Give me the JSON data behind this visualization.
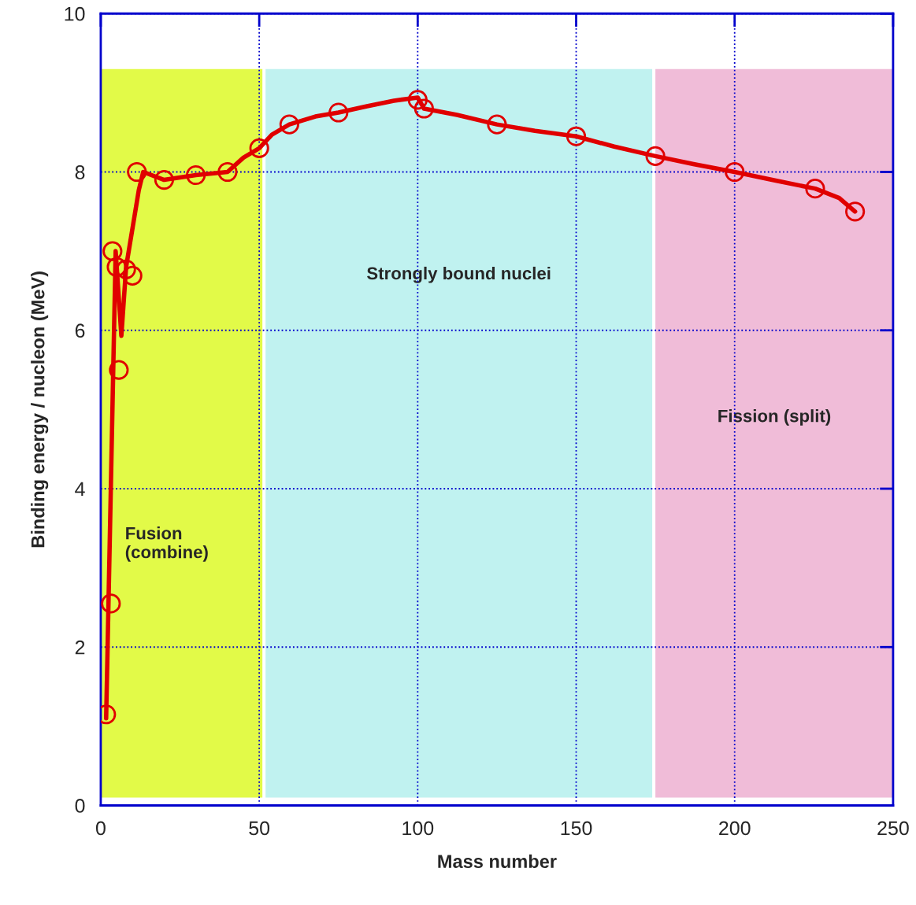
{
  "chart_data": {
    "type": "line",
    "xlabel": "Mass number",
    "ylabel": "Binding energy / nucleon (MeV)",
    "xlim": [
      0,
      250
    ],
    "ylim": [
      0,
      10
    ],
    "xticks": [
      0,
      50,
      100,
      150,
      200,
      250
    ],
    "yticks": [
      0,
      2,
      4,
      6,
      8,
      10
    ],
    "grid": true,
    "series": [
      {
        "type": "line",
        "color": "#e00000",
        "marker": "none",
        "line_style": "solid",
        "x": [
          1.7,
          4.7,
          6.5,
          8,
          12,
          13.4,
          20,
          30,
          40,
          45,
          50,
          54,
          59.5,
          67.7,
          75,
          84,
          92.5,
          100,
          102,
          112.4,
          125,
          137,
          150,
          162,
          175,
          187,
          200,
          213,
          225.4,
          233,
          238
        ],
        "values": [
          1.1,
          7.0,
          5.93,
          6.8,
          7.77,
          8.0,
          7.9,
          7.96,
          8.0,
          8.18,
          8.3,
          8.47,
          8.6,
          8.7,
          8.75,
          8.83,
          8.9,
          8.94,
          8.8,
          8.72,
          8.6,
          8.52,
          8.45,
          8.32,
          8.2,
          8.1,
          8.0,
          7.89,
          7.79,
          7.67,
          7.5
        ]
      },
      {
        "type": "scatter",
        "color": "#e00000",
        "marker": "circle",
        "x": [
          1.7,
          3.2,
          3.7,
          5.7,
          5,
          8,
          10,
          11.4,
          20,
          30,
          40,
          50,
          59.5,
          75,
          100,
          102,
          125,
          150,
          175,
          200,
          225.4,
          238
        ],
        "values": [
          1.15,
          2.55,
          7.0,
          5.5,
          6.8,
          6.77,
          6.69,
          8.0,
          7.9,
          7.96,
          8.0,
          8.3,
          8.6,
          8.75,
          8.91,
          8.8,
          8.6,
          8.45,
          8.2,
          8.0,
          7.79,
          7.5
        ]
      }
    ],
    "bands": [
      {
        "axis": "x",
        "from": 0,
        "to": 51,
        "label": "Fusion\n(combine)",
        "color": "#e2fa48"
      },
      {
        "axis": "x",
        "from": 52,
        "to": 174,
        "label": "Strongly bound nuclei",
        "color": "#c0f2f0"
      },
      {
        "axis": "x",
        "from": 175,
        "to": 250,
        "label": "Fission (split)",
        "color": "#f0bcd8"
      }
    ]
  }
}
